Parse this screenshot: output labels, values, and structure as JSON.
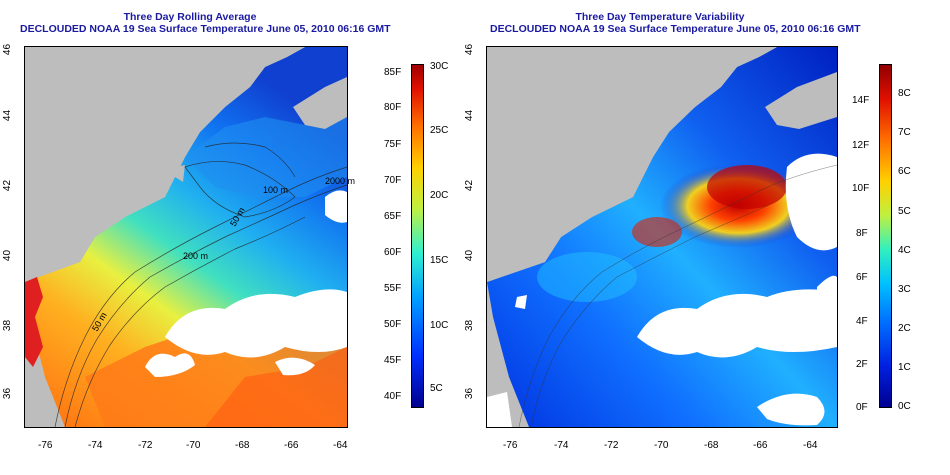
{
  "left_panel": {
    "title_line1": "Three Day Rolling Average",
    "title_line2": "DECLOUDED NOAA 19 Sea Surface Temperature June 05, 2010 06:16 GMT",
    "x_ticks": [
      "-76",
      "-74",
      "-72",
      "-70",
      "-68",
      "-66",
      "-64"
    ],
    "y_ticks": [
      "46",
      "44",
      "42",
      "40",
      "38",
      "36"
    ],
    "contour_labels": [
      "2000 m",
      "100 m",
      "50 m",
      "200 m",
      "50 m"
    ],
    "colorbar_f": [
      "85F",
      "80F",
      "75F",
      "70F",
      "65F",
      "60F",
      "55F",
      "50F",
      "45F",
      "40F"
    ],
    "colorbar_c": [
      "30C",
      "25C",
      "20C",
      "15C",
      "10C",
      "5C"
    ]
  },
  "right_panel": {
    "title_line1": "Three Day Temperature Variability",
    "title_line2": "DECLOUDED NOAA 19 Sea Surface Temperature June 05, 2010 06:16 GMT",
    "x_ticks": [
      "-76",
      "-74",
      "-72",
      "-70",
      "-68",
      "-66",
      "-64"
    ],
    "y_ticks": [
      "46",
      "44",
      "42",
      "40",
      "38",
      "36"
    ],
    "colorbar_f": [
      "14F",
      "12F",
      "10F",
      "8F",
      "6F",
      "4F",
      "2F",
      "0F"
    ],
    "colorbar_c": [
      "8C",
      "7C",
      "6C",
      "5C",
      "4C",
      "3C",
      "2C",
      "1C",
      "0C"
    ]
  },
  "colors": {
    "title": "#1a1aa0",
    "land": "#bdbdbd",
    "cloud": "#ffffff"
  }
}
